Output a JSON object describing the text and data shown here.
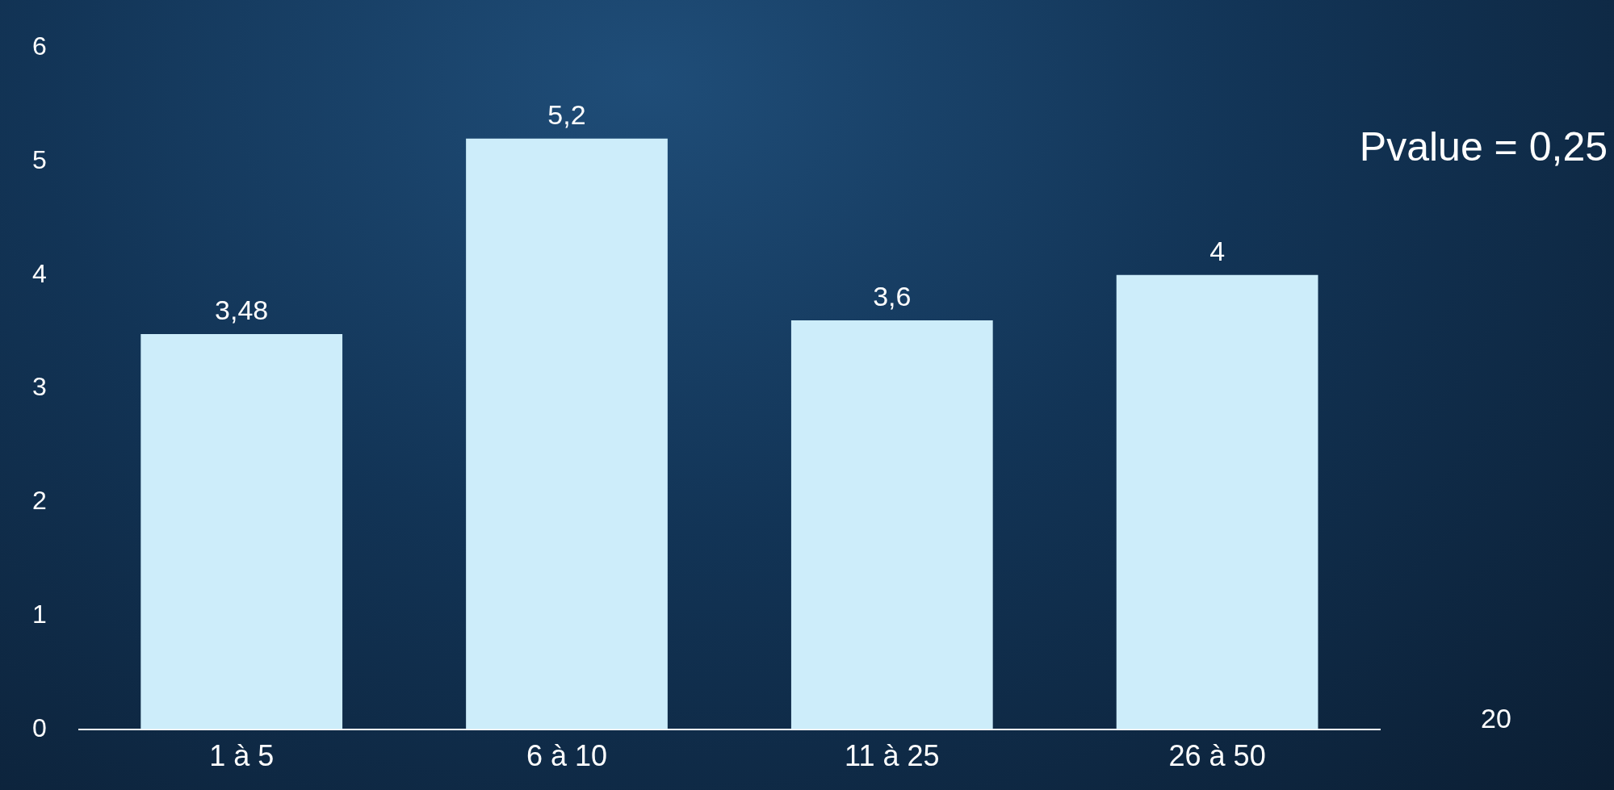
{
  "chart_data": {
    "type": "bar",
    "categories": [
      "1 à 5",
      "6 à 10",
      "11 à 25",
      "26 à 50"
    ],
    "values": [
      3.48,
      5.2,
      3.6,
      4
    ],
    "value_labels": [
      "3,48",
      "5,2",
      "3,6",
      "4"
    ],
    "color": "#cdedfa",
    "ylim": [
      0,
      6
    ],
    "yticks": [
      0,
      1,
      2,
      3,
      4,
      5,
      6
    ],
    "grid": false,
    "legend": false,
    "annotations": [
      "Pvalue = 0,25",
      "20"
    ]
  }
}
